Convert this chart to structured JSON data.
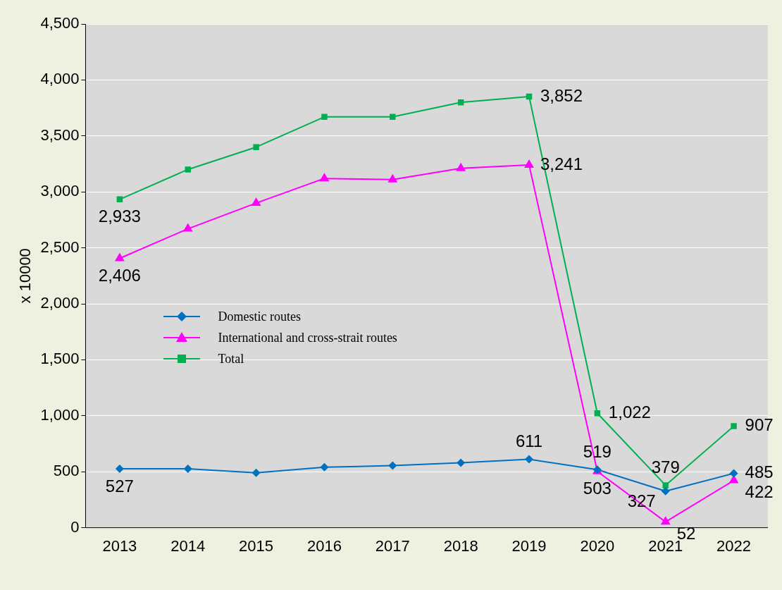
{
  "chart_data": {
    "type": "line",
    "ylabel": "x 10000",
    "categories": [
      "2013",
      "2014",
      "2015",
      "2016",
      "2017",
      "2018",
      "2019",
      "2020",
      "2021",
      "2022"
    ],
    "series": [
      {
        "name": "Domestic routes",
        "color": "#0070c0",
        "marker": "diamond",
        "values": [
          527,
          527,
          490,
          540,
          555,
          580,
          611,
          519,
          327,
          485
        ],
        "value_labels": [
          "527",
          null,
          null,
          null,
          null,
          null,
          "611",
          "519",
          "327",
          "485"
        ]
      },
      {
        "name": "International and cross-strait routes",
        "color": "#ff00ff",
        "marker": "triangle",
        "values": [
          2406,
          2670,
          2900,
          3120,
          3110,
          3210,
          3241,
          503,
          52,
          422
        ],
        "value_labels": [
          "2,406",
          null,
          null,
          null,
          null,
          null,
          "3,241",
          "503",
          "52",
          "422"
        ]
      },
      {
        "name": "Total",
        "color": "#00b050",
        "marker": "square",
        "values": [
          2933,
          3200,
          3400,
          3670,
          3670,
          3800,
          3852,
          1022,
          379,
          907
        ],
        "value_labels": [
          "2,933",
          null,
          null,
          null,
          null,
          null,
          "3,852",
          "1,022",
          "379",
          "907"
        ]
      }
    ],
    "ylim": [
      0,
      4500
    ],
    "yticks": [
      0,
      500,
      {
        "value": 1000,
        "label": "1,000"
      },
      {
        "value": 1500,
        "label": "1,500"
      },
      {
        "value": 2000,
        "label": "2,000"
      },
      {
        "value": 2500,
        "label": "2,500"
      },
      {
        "value": 3000,
        "label": "3,000"
      },
      {
        "value": 3500,
        "label": "3,500"
      },
      {
        "value": 4000,
        "label": "4,000"
      },
      {
        "value": 4500,
        "label": "4,500"
      }
    ],
    "grid": "y",
    "legend": "left"
  }
}
